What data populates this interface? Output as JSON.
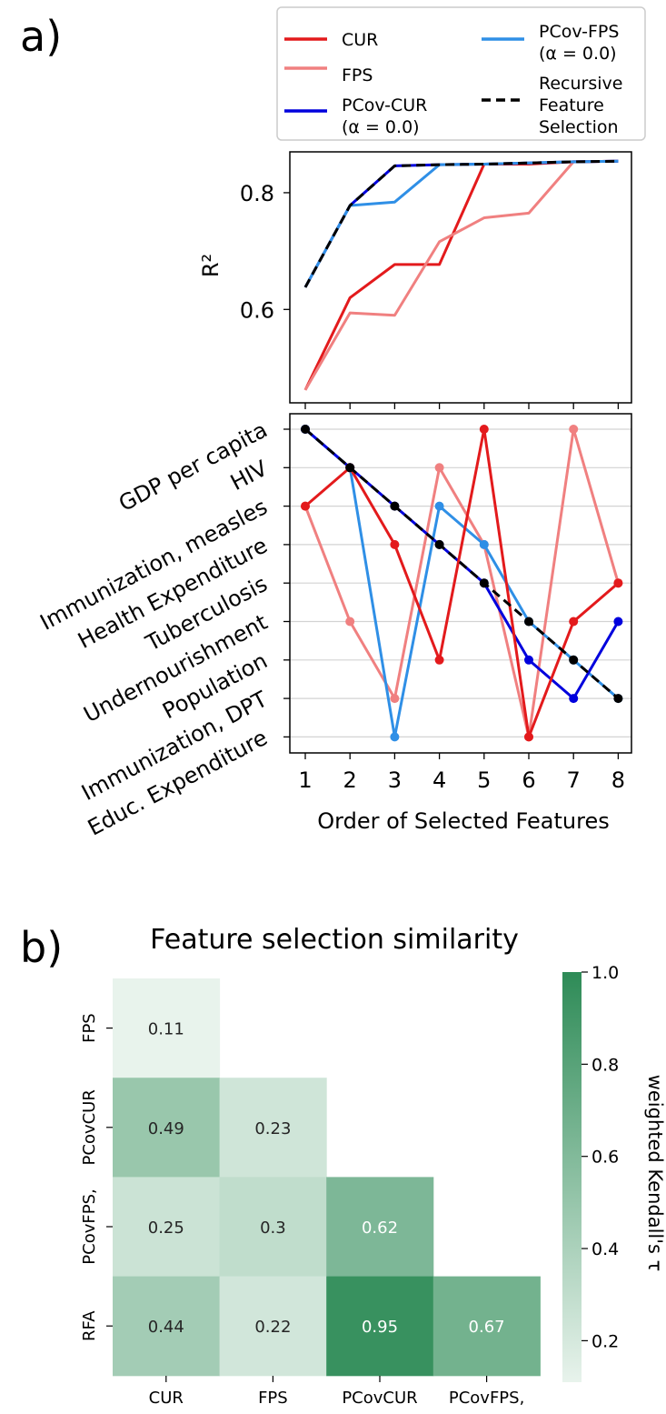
{
  "panel_a_letter": "a)",
  "panel_b_letter": "b)",
  "chart_data": [
    {
      "type": "line",
      "ylabel": "R²",
      "yticks": [
        "0.6",
        "0.8"
      ],
      "yticks_values": [
        0.6,
        0.8
      ],
      "ylim": [
        0.44,
        0.87
      ],
      "x": [
        1,
        2,
        3,
        4,
        5,
        6,
        7,
        8
      ],
      "legend": {
        "placement": "top",
        "entries": [
          {
            "label": "CUR",
            "color": "#e31a1c",
            "dash": false
          },
          {
            "label": "PCov-FPS",
            "label2": "(α = 0.0)",
            "color": "#2f8fe6",
            "dash": false
          },
          {
            "label": "FPS",
            "color": "#f08080",
            "dash": false
          },
          {
            "label": "Recursive",
            "label2": "Feature",
            "label3": "Selection",
            "color": "#000000",
            "dash": true
          },
          {
            "label": "PCov-CUR",
            "label2": "(α = 0.0)",
            "color": "#0000dd",
            "dash": false
          }
        ]
      },
      "series": [
        {
          "name": "CUR",
          "color": "#e31a1c",
          "values": [
            0.462,
            0.62,
            0.677,
            0.677,
            0.849,
            0.849,
            0.853,
            0.854
          ]
        },
        {
          "name": "FPS",
          "color": "#f08080",
          "values": [
            0.462,
            0.594,
            0.59,
            0.716,
            0.757,
            0.765,
            0.853,
            0.854
          ]
        },
        {
          "name": "PCov-CUR (α = 0.0)",
          "color": "#0000dd",
          "values": [
            0.638,
            0.778,
            0.846,
            0.848,
            0.849,
            0.851,
            0.853,
            0.854
          ]
        },
        {
          "name": "PCov-FPS (α = 0.0)",
          "color": "#2f8fe6",
          "values": [
            0.638,
            0.778,
            0.784,
            0.848,
            0.849,
            0.851,
            0.853,
            0.854
          ]
        },
        {
          "name": "Recursive Feature Selection",
          "color": "#000000",
          "dash": true,
          "values": [
            0.638,
            0.778,
            0.846,
            0.848,
            0.849,
            0.851,
            0.853,
            0.854
          ]
        }
      ]
    },
    {
      "type": "line",
      "xlabel": "Order of Selected Features",
      "xticks": [
        "1",
        "2",
        "3",
        "4",
        "5",
        "6",
        "7",
        "8"
      ],
      "categories_y": [
        "GDP per capita",
        "HIV",
        "Immunization, measles",
        "Health Expenditure",
        "Tuberculosis",
        "Undernourishment",
        "Population",
        "Immunization, DPT",
        "Educ. Expenditure"
      ],
      "grid": "horizontal",
      "x": [
        1,
        2,
        3,
        4,
        5,
        6,
        7,
        8
      ],
      "series": [
        {
          "name": "FPS",
          "color": "#f08080",
          "values": [
            "Immunization, measles",
            "Undernourishment",
            "Immunization, DPT",
            "HIV",
            "Health Expenditure",
            "Educ. Expenditure",
            "GDP per capita",
            "Tuberculosis"
          ]
        },
        {
          "name": "PCov-FPS (α = 0.0)",
          "color": "#2f8fe6",
          "values": [
            "GDP per capita",
            "HIV",
            "Educ. Expenditure",
            "Immunization, measles",
            "Health Expenditure",
            "Undernourishment",
            "Population",
            "Immunization, DPT"
          ]
        },
        {
          "name": "PCov-CUR (α = 0.0)",
          "color": "#0000dd",
          "values": [
            "GDP per capita",
            "HIV",
            "Immunization, measles",
            "Health Expenditure",
            "Tuberculosis",
            "Population",
            "Immunization, DPT",
            "Undernourishment"
          ]
        },
        {
          "name": "CUR",
          "color": "#e31a1c",
          "values": [
            "Immunization, measles",
            "HIV",
            "Health Expenditure",
            "Population",
            "GDP per capita",
            "Educ. Expenditure",
            "Undernourishment",
            "Tuberculosis"
          ]
        },
        {
          "name": "Recursive Feature Selection",
          "color": "#000000",
          "dash": true,
          "values": [
            "GDP per capita",
            "HIV",
            "Immunization, measles",
            "Health Expenditure",
            "Tuberculosis",
            "Undernourishment",
            "Population",
            "Immunization, DPT"
          ]
        }
      ]
    },
    {
      "type": "heatmap",
      "title": "Feature selection similarity",
      "xlabels": [
        "CUR",
        "FPS",
        "PCovCUR",
        "PCovFPS,"
      ],
      "ylabels": [
        "FPS",
        "PCovCUR",
        "PCovFPS,",
        "RFA"
      ],
      "values": [
        [
          0.11,
          null,
          null,
          null
        ],
        [
          0.49,
          0.23,
          null,
          null
        ],
        [
          0.25,
          0.3,
          0.62,
          null
        ],
        [
          0.44,
          0.22,
          0.95,
          0.67
        ]
      ],
      "colorbar": {
        "label": "weighted Kendall's τ",
        "ticks": [
          "0.2",
          "0.4",
          "0.6",
          "0.8",
          "1.0"
        ],
        "ticks_values": [
          0.2,
          0.4,
          0.6,
          0.8,
          1.0
        ],
        "range": [
          0.11,
          1.0
        ],
        "color_low": "#e8f3ec",
        "color_high": "#2e8b57"
      }
    }
  ]
}
